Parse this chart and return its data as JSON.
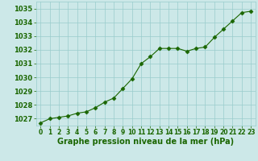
{
  "x": [
    0,
    1,
    2,
    3,
    4,
    5,
    6,
    7,
    8,
    9,
    10,
    11,
    12,
    13,
    14,
    15,
    16,
    17,
    18,
    19,
    20,
    21,
    22,
    23
  ],
  "y": [
    1026.7,
    1027.0,
    1027.1,
    1027.2,
    1027.4,
    1027.5,
    1027.8,
    1028.2,
    1028.5,
    1029.2,
    1029.9,
    1031.0,
    1031.5,
    1032.1,
    1032.1,
    1032.1,
    1031.9,
    1032.1,
    1032.2,
    1032.9,
    1033.5,
    1034.1,
    1034.7,
    1034.8
  ],
  "ylim": [
    1026.5,
    1035.5
  ],
  "yticks": [
    1027,
    1028,
    1029,
    1030,
    1031,
    1032,
    1033,
    1034,
    1035
  ],
  "xlim": [
    -0.5,
    23.5
  ],
  "xticks": [
    0,
    1,
    2,
    3,
    4,
    5,
    6,
    7,
    8,
    9,
    10,
    11,
    12,
    13,
    14,
    15,
    16,
    17,
    18,
    19,
    20,
    21,
    22,
    23
  ],
  "xlabel": "Graphe pression niveau de la mer (hPa)",
  "line_color": "#1a6600",
  "marker": "D",
  "marker_size": 2.5,
  "bg_color": "#cce8e8",
  "grid_color": "#99cccc",
  "tick_color": "#1a6600",
  "label_color": "#1a6600",
  "xlabel_fontsize": 7.0,
  "ytick_fontsize": 6.0,
  "xtick_fontsize": 5.5,
  "bottom_bar_color": "#336633",
  "bottom_bar_height": 0.13
}
